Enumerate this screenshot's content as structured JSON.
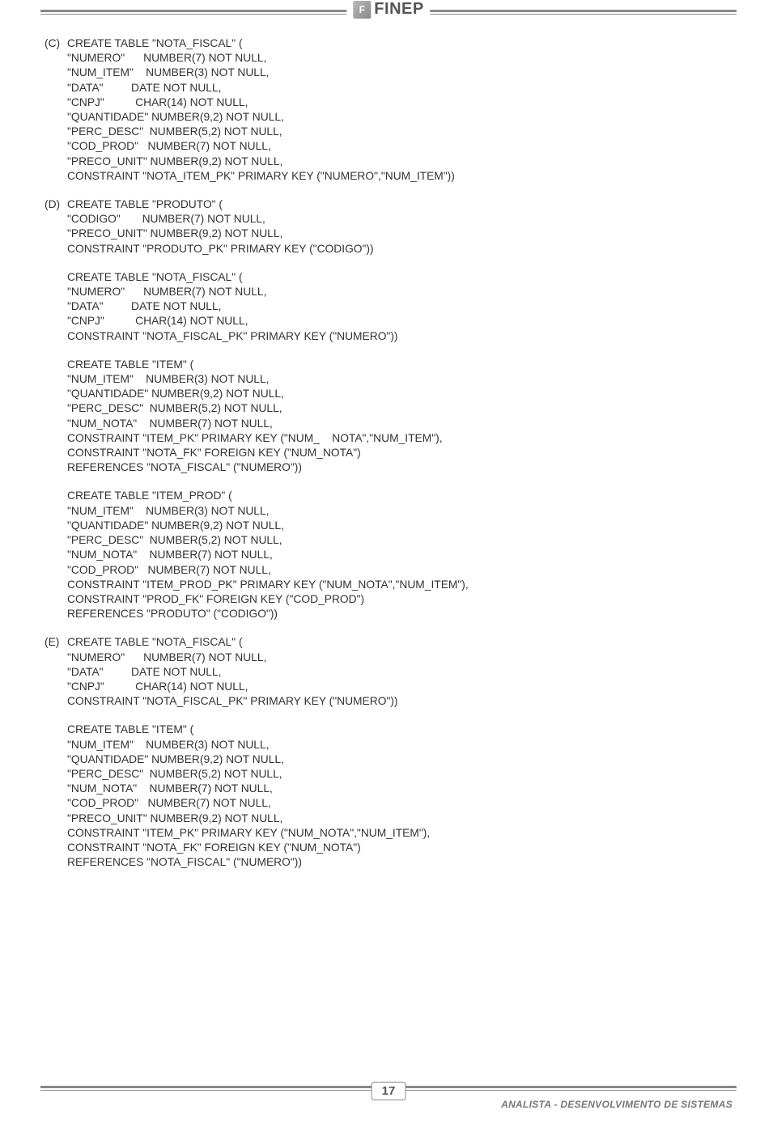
{
  "header": {
    "logo_glyph": "F",
    "brand": "FINEP"
  },
  "options": [
    {
      "label": "(C)",
      "blocks": [
        [
          "CREATE TABLE \"NOTA_FISCAL\" (",
          "\"NUMERO\"      NUMBER(7) NOT NULL,",
          "\"NUM_ITEM\"    NUMBER(3) NOT NULL,",
          "\"DATA\"         DATE NOT NULL,",
          "\"CNPJ\"          CHAR(14) NOT NULL,",
          "\"QUANTIDADE\" NUMBER(9,2) NOT NULL,",
          "\"PERC_DESC\"  NUMBER(5,2) NOT NULL,",
          "\"COD_PROD\"   NUMBER(7) NOT NULL,",
          "\"PRECO_UNIT\" NUMBER(9,2) NOT NULL,",
          "CONSTRAINT \"NOTA_ITEM_PK\" PRIMARY KEY (\"NUMERO\",\"NUM_ITEM\"))"
        ]
      ]
    },
    {
      "label": "(D)",
      "blocks": [
        [
          "CREATE TABLE \"PRODUTO\" (",
          "\"CODIGO\"       NUMBER(7) NOT NULL,",
          "\"PRECO_UNIT\" NUMBER(9,2) NOT NULL,",
          "CONSTRAINT \"PRODUTO_PK\" PRIMARY KEY (\"CODIGO\"))"
        ],
        [
          "CREATE TABLE \"NOTA_FISCAL\" (",
          "\"NUMERO\"      NUMBER(7) NOT NULL,",
          "\"DATA\"         DATE NOT NULL,",
          "\"CNPJ\"          CHAR(14) NOT NULL,",
          "CONSTRAINT \"NOTA_FISCAL_PK\" PRIMARY KEY (\"NUMERO\"))"
        ],
        [
          "CREATE TABLE \"ITEM\" (",
          "\"NUM_ITEM\"    NUMBER(3) NOT NULL,",
          "\"QUANTIDADE\" NUMBER(9,2) NOT NULL,",
          "\"PERC_DESC\"  NUMBER(5,2) NOT NULL,",
          "\"NUM_NOTA\"    NUMBER(7) NOT NULL,",
          "CONSTRAINT \"ITEM_PK\" PRIMARY KEY (\"NUM_    NOTA\",\"NUM_ITEM\"),",
          "CONSTRAINT \"NOTA_FK\" FOREIGN KEY (\"NUM_NOTA\")",
          "REFERENCES \"NOTA_FISCAL\" (\"NUMERO\"))"
        ],
        [
          "CREATE TABLE \"ITEM_PROD\" (",
          "\"NUM_ITEM\"    NUMBER(3) NOT NULL,",
          "\"QUANTIDADE\" NUMBER(9,2) NOT NULL,",
          "\"PERC_DESC\"  NUMBER(5,2) NOT NULL,",
          "\"NUM_NOTA\"    NUMBER(7) NOT NULL,",
          "\"COD_PROD\"   NUMBER(7) NOT NULL,",
          "CONSTRAINT \"ITEM_PROD_PK\" PRIMARY KEY (\"NUM_NOTA\",\"NUM_ITEM\"),",
          "CONSTRAINT \"PROD_FK\" FOREIGN KEY (\"COD_PROD\")",
          "REFERENCES \"PRODUTO\" (\"CODIGO\"))"
        ]
      ]
    },
    {
      "label": "(E)",
      "blocks": [
        [
          "CREATE TABLE \"NOTA_FISCAL\" (",
          "\"NUMERO\"      NUMBER(7) NOT NULL,",
          "\"DATA\"         DATE NOT NULL,",
          "\"CNPJ\"          CHAR(14) NOT NULL,",
          "CONSTRAINT \"NOTA_FISCAL_PK\" PRIMARY KEY (\"NUMERO\"))"
        ],
        [
          "CREATE TABLE \"ITEM\" (",
          "\"NUM_ITEM\"    NUMBER(3) NOT NULL,",
          "\"QUANTIDADE\" NUMBER(9,2) NOT NULL,",
          "\"PERC_DESC\"  NUMBER(5,2) NOT NULL,",
          "\"NUM_NOTA\"    NUMBER(7) NOT NULL,",
          "\"COD_PROD\"   NUMBER(7) NOT NULL,",
          "\"PRECO_UNIT\" NUMBER(9,2) NOT NULL,",
          "CONSTRAINT \"ITEM_PK\" PRIMARY KEY (\"NUM_NOTA\",\"NUM_ITEM\"),",
          "CONSTRAINT \"NOTA_FK\" FOREIGN KEY (\"NUM_NOTA\")",
          "REFERENCES \"NOTA_FISCAL\" (\"NUMERO\"))"
        ]
      ]
    }
  ],
  "footer": {
    "page_number": "17",
    "title": "ANALISTA - DESENVOLVIMENTO DE SISTEMAS"
  }
}
